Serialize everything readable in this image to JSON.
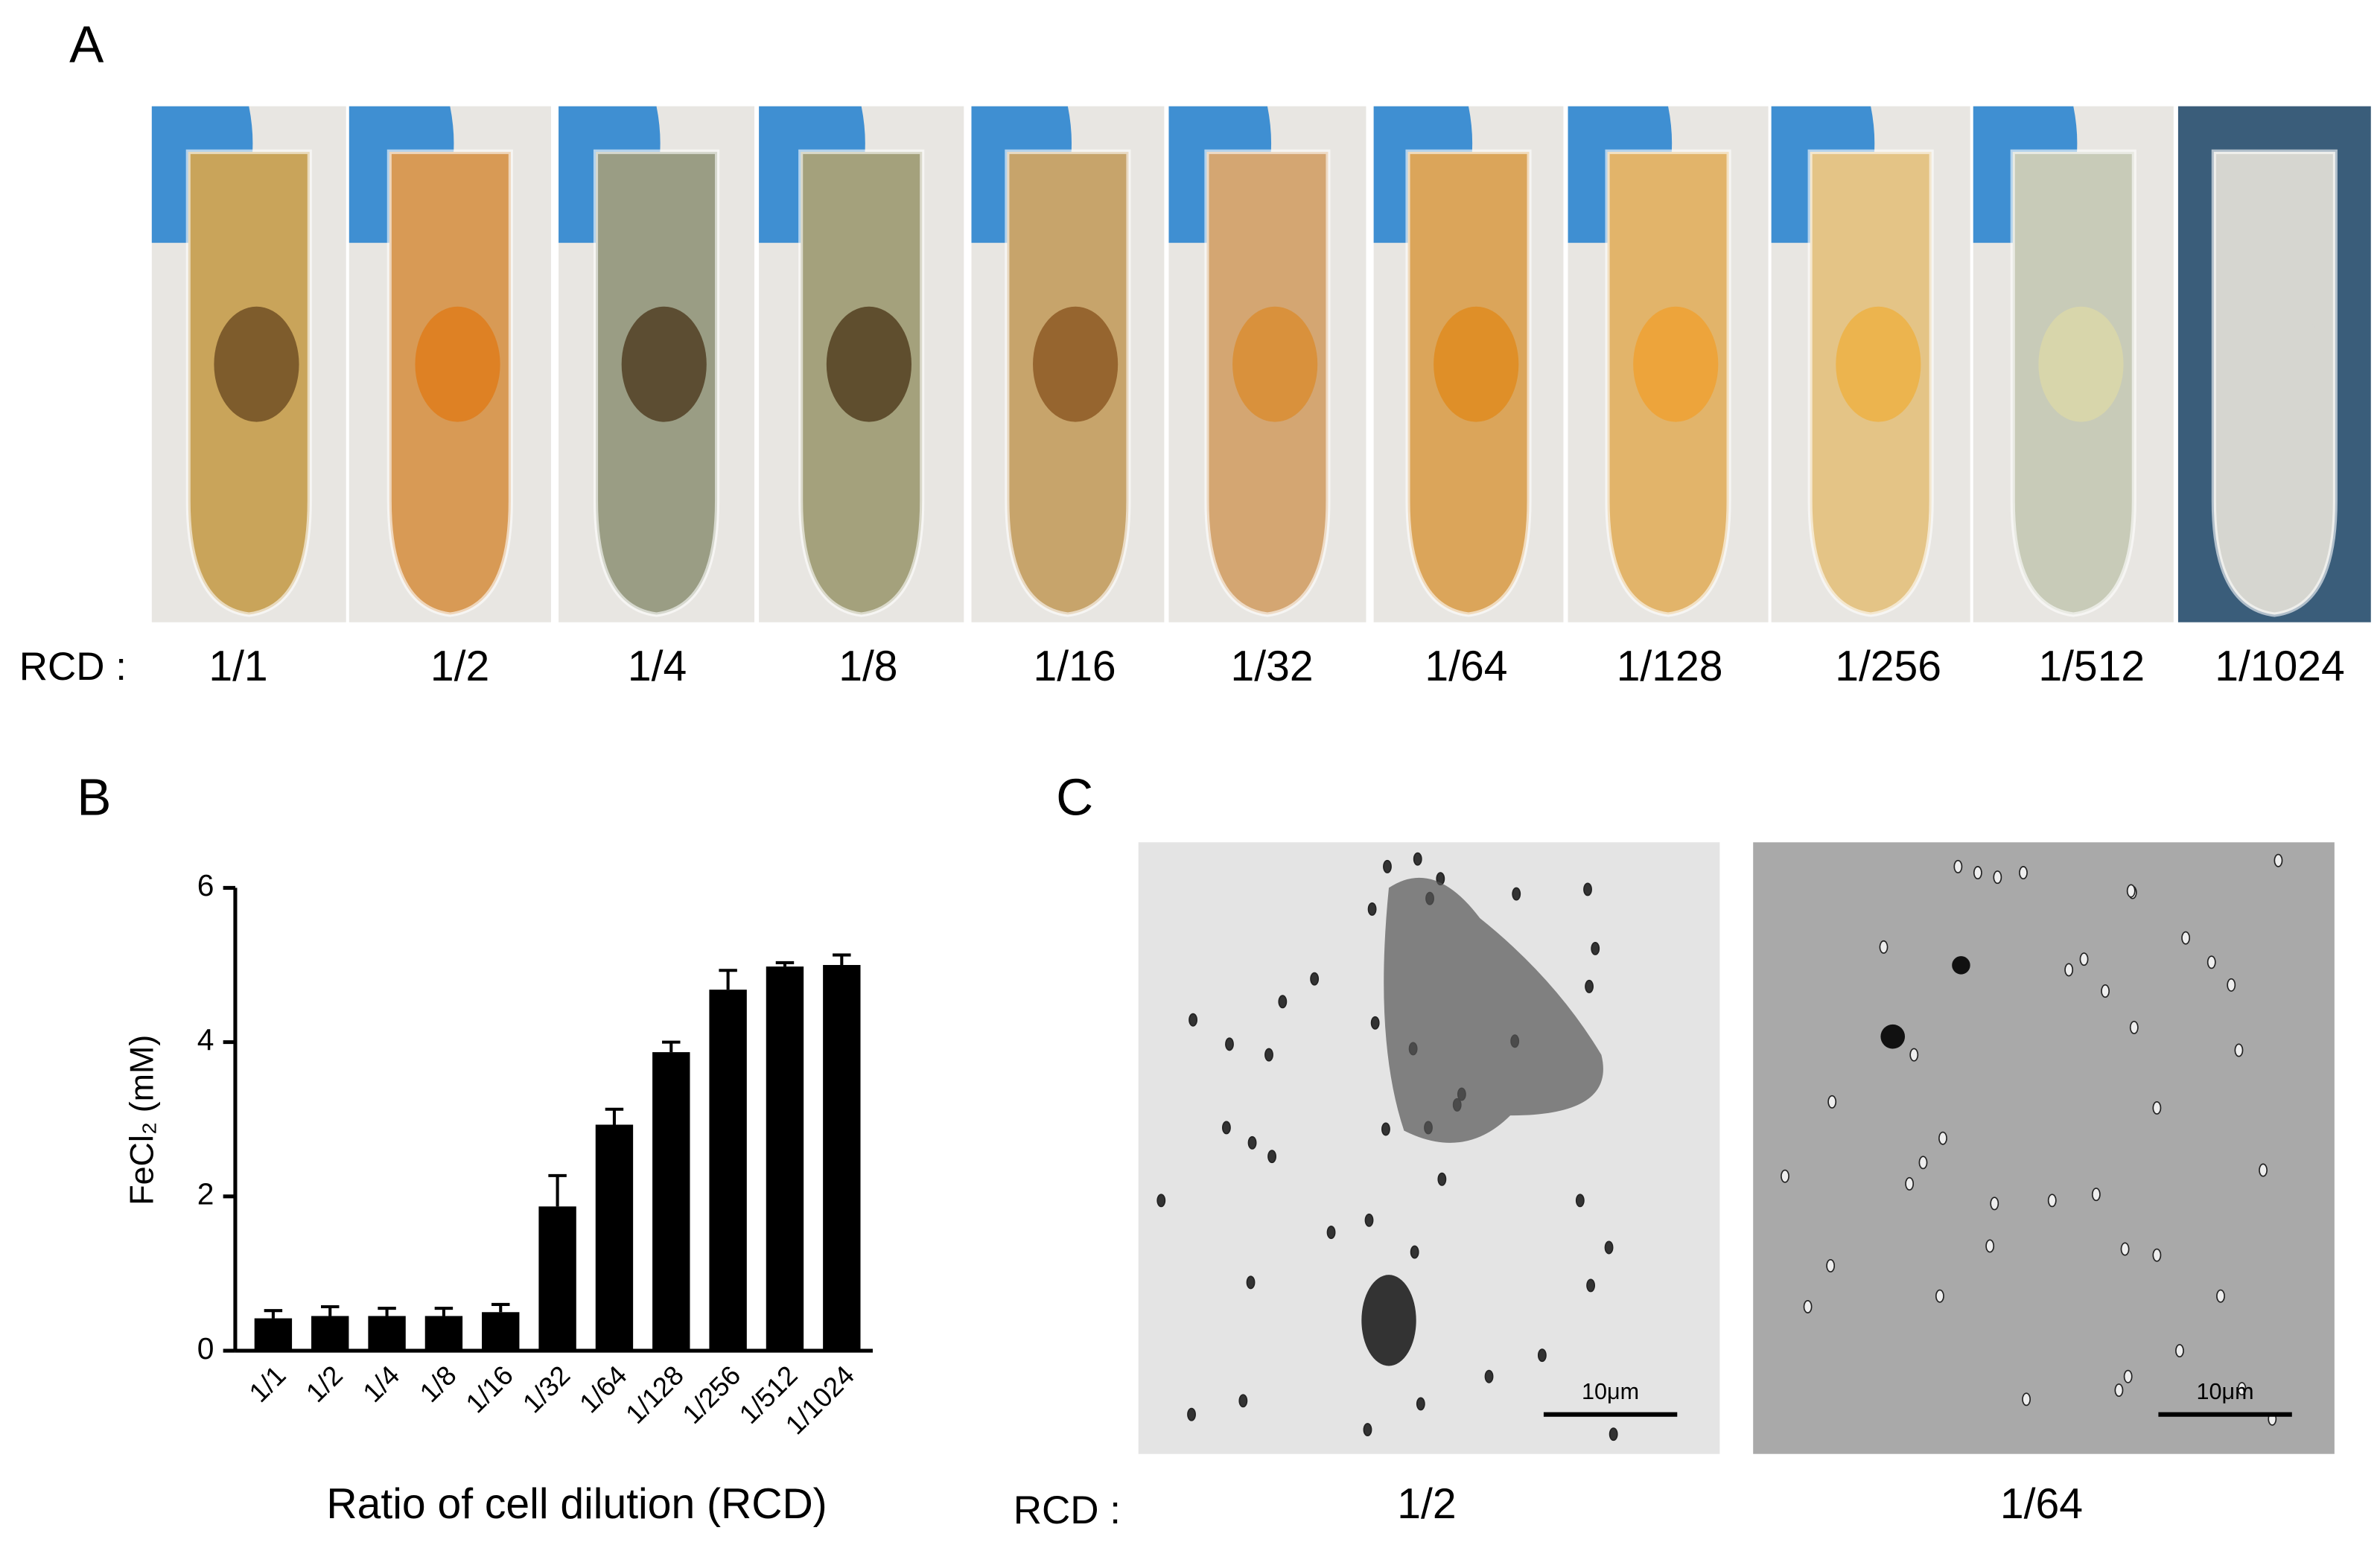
{
  "panel_a": {
    "label": "A",
    "row_label": "RCD :",
    "tubes": [
      "1/1",
      "1/2",
      "1/4",
      "1/8",
      "1/16",
      "1/32",
      "1/64",
      "1/128",
      "1/256",
      "1/512",
      "1/1024"
    ]
  },
  "panel_b": {
    "label": "B"
  },
  "chart_data": {
    "type": "bar",
    "x_label": "Ratio of cell dilution (RCD)",
    "y_label": "FeCl₂ (mM)",
    "categories": [
      "1/1",
      "1/2",
      "1/4",
      "1/8",
      "1/16",
      "1/32",
      "1/64",
      "1/128",
      "1/256",
      "1/512",
      "1/1024"
    ],
    "values": [
      0.42,
      0.45,
      0.45,
      0.45,
      0.5,
      1.87,
      2.93,
      3.87,
      4.68,
      4.98,
      5.0
    ],
    "errors": [
      0.1,
      0.12,
      0.1,
      0.1,
      0.1,
      0.4,
      0.2,
      0.13,
      0.25,
      0.05,
      0.13
    ],
    "color": "#000000",
    "ylim": [
      0,
      6
    ],
    "yticks": [
      0,
      2,
      4,
      6
    ]
  },
  "panel_c": {
    "label": "C",
    "row_label": "RCD :",
    "images": [
      {
        "label": "1/2",
        "scale_bar": "10μm"
      },
      {
        "label": "1/64",
        "scale_bar": "10μm"
      }
    ]
  }
}
